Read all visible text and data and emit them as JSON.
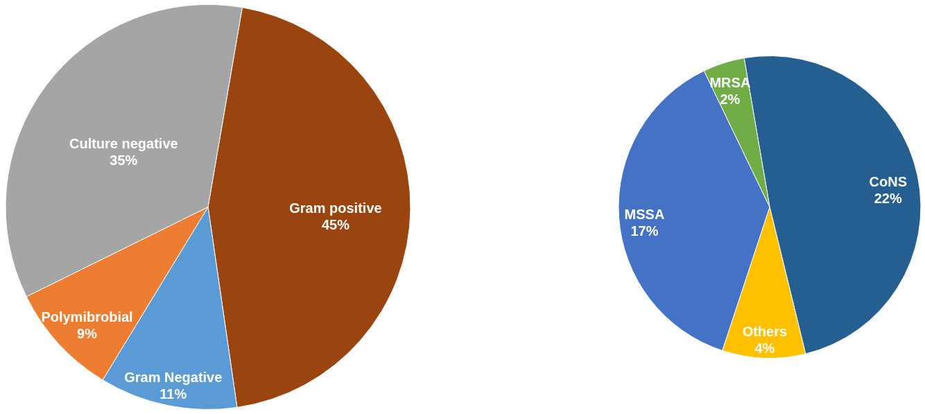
{
  "chart_data": [
    {
      "type": "pie",
      "categories": [
        "Gram positive",
        "Gram Negative",
        "Polymibrobial",
        "Culture negative"
      ],
      "values": [
        45,
        11,
        9,
        35
      ],
      "value_labels": [
        "45%",
        "11%",
        "9%",
        "35%"
      ],
      "colors": [
        "#9a4510",
        "#5b9bd5",
        "#ed7d31",
        "#a5a5a5"
      ],
      "legend": false
    },
    {
      "type": "pie",
      "categories": [
        "CoNS",
        "Others",
        "MSSA",
        "MRSA"
      ],
      "values": [
        22,
        4,
        17,
        2
      ],
      "value_labels": [
        "22%",
        "4%",
        "17%",
        "2%"
      ],
      "colors": [
        "#255e91",
        "#ffc000",
        "#4472c4",
        "#70ad47"
      ],
      "legend": false
    }
  ]
}
